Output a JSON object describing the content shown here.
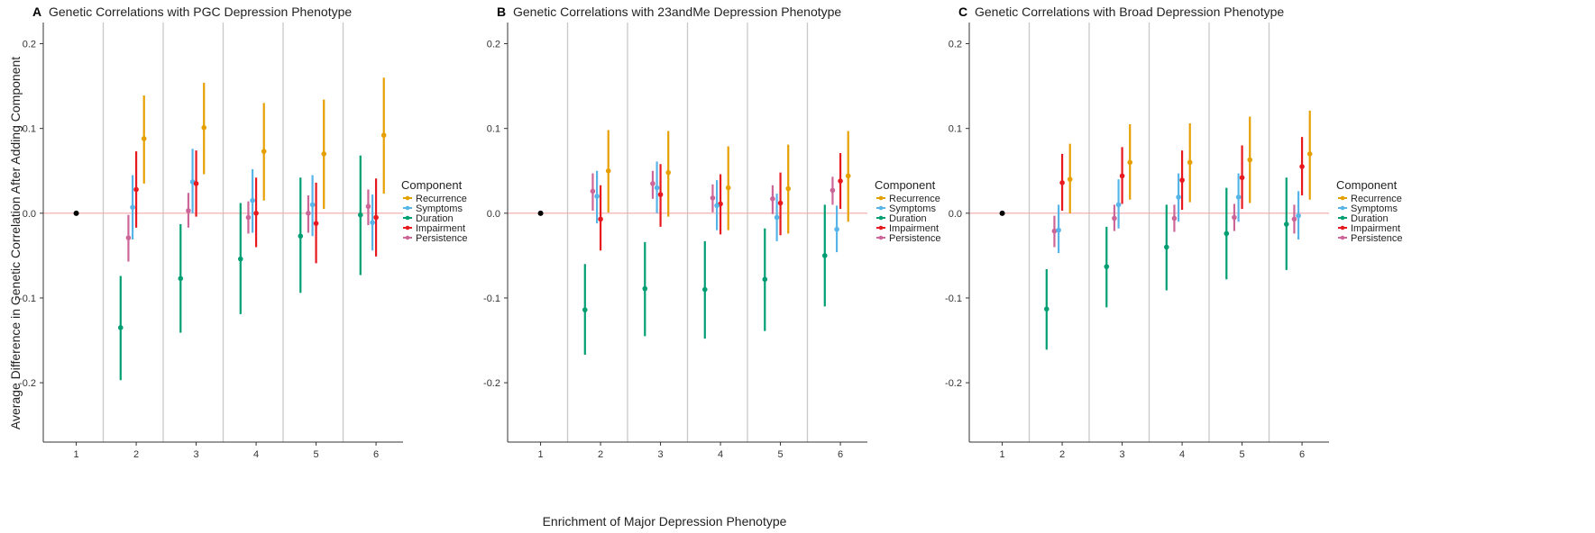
{
  "chart_data": {
    "type": "scatter",
    "ylabel": "Average Difference in Genetic Correlation After Adding Component",
    "xlabel": "Enrichment of Major Depression Phenotype",
    "categories": [
      "1",
      "2",
      "3",
      "4",
      "5",
      "6"
    ],
    "ylim": [
      -0.27,
      0.225
    ],
    "yticks": [
      "0.2",
      "0.1",
      "0.0",
      "-0.1",
      "-0.2"
    ],
    "reference_line": 0,
    "baseline": {
      "x": "1",
      "y": 0.0,
      "color": "#000000"
    },
    "legend": {
      "title": "Component",
      "placement": "right",
      "entries": [
        {
          "name": "Recurrence",
          "color": "#E69F00"
        },
        {
          "name": "Symptoms",
          "color": "#56B4E9"
        },
        {
          "name": "Duration",
          "color": "#009E73"
        },
        {
          "name": "Impairment",
          "color": "#E8191E"
        },
        {
          "name": "Persistence",
          "color": "#CC6699"
        }
      ]
    },
    "panels": [
      {
        "tag": "A",
        "title": "Genetic Correlations with PGC Depression Phenotype",
        "series": [
          {
            "name": "Duration",
            "color": "#009E73",
            "points": [
              [
                2,
                -0.135,
                -0.197,
                -0.074
              ],
              [
                3,
                -0.077,
                -0.141,
                -0.013
              ],
              [
                4,
                -0.054,
                -0.119,
                0.012
              ],
              [
                5,
                -0.027,
                -0.094,
                0.042
              ],
              [
                6,
                -0.002,
                -0.073,
                0.068
              ]
            ]
          },
          {
            "name": "Persistence",
            "color": "#CC6699",
            "points": [
              [
                2,
                -0.029,
                -0.057,
                -0.002
              ],
              [
                3,
                0.003,
                -0.017,
                0.024
              ],
              [
                4,
                -0.005,
                -0.024,
                0.014
              ],
              [
                5,
                0.0,
                -0.023,
                0.021
              ],
              [
                6,
                0.008,
                -0.014,
                0.028
              ]
            ]
          },
          {
            "name": "Symptoms",
            "color": "#56B4E9",
            "points": [
              [
                2,
                0.007,
                -0.031,
                0.045
              ],
              [
                3,
                0.037,
                0.0,
                0.076
              ],
              [
                4,
                0.015,
                -0.023,
                0.052
              ],
              [
                5,
                0.01,
                -0.027,
                0.045
              ],
              [
                6,
                -0.011,
                -0.044,
                0.022
              ]
            ]
          },
          {
            "name": "Impairment",
            "color": "#E8191E",
            "points": [
              [
                2,
                0.028,
                -0.017,
                0.073
              ],
              [
                3,
                0.035,
                -0.004,
                0.074
              ],
              [
                4,
                0.0,
                -0.04,
                0.042
              ],
              [
                5,
                -0.012,
                -0.059,
                0.036
              ],
              [
                6,
                -0.005,
                -0.051,
                0.041
              ]
            ]
          },
          {
            "name": "Recurrence",
            "color": "#E69F00",
            "points": [
              [
                2,
                0.088,
                0.035,
                0.139
              ],
              [
                3,
                0.101,
                0.046,
                0.154
              ],
              [
                4,
                0.073,
                0.015,
                0.13
              ],
              [
                5,
                0.07,
                0.005,
                0.134
              ],
              [
                6,
                0.092,
                0.023,
                0.16
              ]
            ]
          }
        ]
      },
      {
        "tag": "B",
        "title": "Genetic Correlations with 23andMe Depression Phenotype",
        "series": [
          {
            "name": "Duration",
            "color": "#009E73",
            "points": [
              [
                2,
                -0.114,
                -0.167,
                -0.06
              ],
              [
                3,
                -0.089,
                -0.145,
                -0.034
              ],
              [
                4,
                -0.09,
                -0.148,
                -0.033
              ],
              [
                5,
                -0.078,
                -0.139,
                -0.018
              ],
              [
                6,
                -0.05,
                -0.11,
                0.01
              ]
            ]
          },
          {
            "name": "Impairment",
            "color": "#E8191E",
            "points": [
              [
                2,
                -0.007,
                -0.044,
                0.033
              ],
              [
                3,
                0.022,
                -0.016,
                0.058
              ],
              [
                4,
                0.011,
                -0.025,
                0.046
              ],
              [
                5,
                0.012,
                -0.026,
                0.048
              ],
              [
                6,
                0.038,
                0.005,
                0.071
              ]
            ]
          },
          {
            "name": "Symptoms",
            "color": "#56B4E9",
            "points": [
              [
                2,
                0.02,
                -0.012,
                0.05
              ],
              [
                3,
                0.03,
                0.0,
                0.061
              ],
              [
                4,
                0.009,
                -0.02,
                0.039
              ],
              [
                5,
                -0.005,
                -0.033,
                0.023
              ],
              [
                6,
                -0.019,
                -0.046,
                0.009
              ]
            ]
          },
          {
            "name": "Persistence",
            "color": "#CC6699",
            "points": [
              [
                2,
                0.026,
                0.003,
                0.047
              ],
              [
                3,
                0.035,
                0.017,
                0.05
              ],
              [
                4,
                0.018,
                0.001,
                0.034
              ],
              [
                5,
                0.017,
                -0.001,
                0.033
              ],
              [
                6,
                0.027,
                0.01,
                0.043
              ]
            ]
          },
          {
            "name": "Recurrence",
            "color": "#E69F00",
            "points": [
              [
                2,
                0.05,
                0.001,
                0.098
              ],
              [
                3,
                0.048,
                -0.004,
                0.097
              ],
              [
                4,
                0.03,
                -0.02,
                0.079
              ],
              [
                5,
                0.029,
                -0.024,
                0.081
              ],
              [
                6,
                0.044,
                -0.01,
                0.097
              ]
            ]
          }
        ]
      },
      {
        "tag": "C",
        "title": "Genetic Correlations with Broad Depression Phenotype",
        "series": [
          {
            "name": "Duration",
            "color": "#009E73",
            "points": [
              [
                2,
                -0.113,
                -0.161,
                -0.066
              ],
              [
                3,
                -0.063,
                -0.111,
                -0.016
              ],
              [
                4,
                -0.04,
                -0.091,
                0.01
              ],
              [
                5,
                -0.024,
                -0.078,
                0.03
              ],
              [
                6,
                -0.013,
                -0.067,
                0.042
              ]
            ]
          },
          {
            "name": "Persistence",
            "color": "#CC6699",
            "points": [
              [
                2,
                -0.021,
                -0.04,
                -0.003
              ],
              [
                3,
                -0.006,
                -0.021,
                0.01
              ],
              [
                4,
                -0.006,
                -0.022,
                0.01
              ],
              [
                5,
                -0.005,
                -0.021,
                0.011
              ],
              [
                6,
                -0.007,
                -0.024,
                0.01
              ]
            ]
          },
          {
            "name": "Symptoms",
            "color": "#56B4E9",
            "points": [
              [
                2,
                -0.02,
                -0.047,
                0.01
              ],
              [
                3,
                0.01,
                -0.018,
                0.04
              ],
              [
                4,
                0.019,
                -0.01,
                0.047
              ],
              [
                5,
                0.019,
                -0.01,
                0.047
              ],
              [
                6,
                -0.003,
                -0.031,
                0.026
              ]
            ]
          },
          {
            "name": "Impairment",
            "color": "#E8191E",
            "points": [
              [
                2,
                0.036,
                0.003,
                0.07
              ],
              [
                3,
                0.044,
                0.011,
                0.078
              ],
              [
                4,
                0.039,
                0.004,
                0.074
              ],
              [
                5,
                0.042,
                0.005,
                0.08
              ],
              [
                6,
                0.055,
                0.021,
                0.09
              ]
            ]
          },
          {
            "name": "Recurrence",
            "color": "#E69F00",
            "points": [
              [
                2,
                0.04,
                0.0,
                0.082
              ],
              [
                3,
                0.06,
                0.016,
                0.105
              ],
              [
                4,
                0.06,
                0.013,
                0.106
              ],
              [
                5,
                0.063,
                0.012,
                0.114
              ],
              [
                6,
                0.07,
                0.016,
                0.121
              ]
            ]
          }
        ]
      }
    ]
  }
}
